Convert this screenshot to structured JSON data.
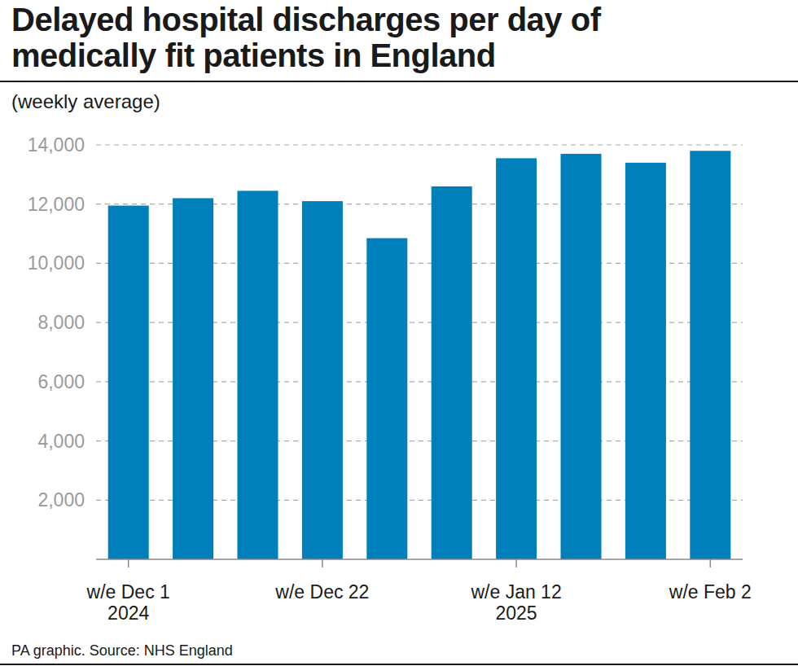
{
  "chart_data": {
    "type": "bar",
    "title": "Delayed hospital discharges per day of medically fit patients in England",
    "subtitle": "(weekly average)",
    "source": "PA graphic. Source: NHS England",
    "categories": [
      "w/e Dec 1\n2024",
      null,
      null,
      "w/e Dec 22",
      null,
      null,
      "w/e Jan 12\n2025",
      null,
      null,
      "w/e Feb 2"
    ],
    "values": [
      11950,
      12200,
      12450,
      12100,
      10850,
      12600,
      13550,
      13700,
      13400,
      13800
    ],
    "color": "#0080bb",
    "ylim": [
      0,
      14000
    ],
    "yticks": [
      {
        "value": 2000,
        "label": "2,000"
      },
      {
        "value": 4000,
        "label": "4,000"
      },
      {
        "value": 6000,
        "label": "6,000"
      },
      {
        "value": 8000,
        "label": "8,000"
      },
      {
        "value": 10000,
        "label": "10,000"
      },
      {
        "value": 12000,
        "label": "12,000"
      },
      {
        "value": 14000,
        "label": "14,000"
      }
    ],
    "grid": true
  }
}
